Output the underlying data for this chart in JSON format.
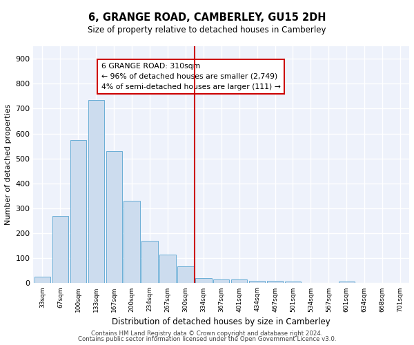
{
  "title": "6, GRANGE ROAD, CAMBERLEY, GU15 2DH",
  "subtitle": "Size of property relative to detached houses in Camberley",
  "xlabel": "Distribution of detached houses by size in Camberley",
  "ylabel": "Number of detached properties",
  "bar_color": "#ccdcee",
  "bar_edge_color": "#6aaed6",
  "background_color": "#eef2fb",
  "grid_color": "#ffffff",
  "categories": [
    "33sqm",
    "67sqm",
    "100sqm",
    "133sqm",
    "167sqm",
    "200sqm",
    "234sqm",
    "267sqm",
    "300sqm",
    "334sqm",
    "367sqm",
    "401sqm",
    "434sqm",
    "467sqm",
    "501sqm",
    "534sqm",
    "567sqm",
    "601sqm",
    "634sqm",
    "668sqm",
    "701sqm"
  ],
  "values": [
    25,
    270,
    575,
    735,
    530,
    330,
    170,
    115,
    68,
    20,
    15,
    14,
    10,
    9,
    8,
    0,
    0,
    7,
    0,
    0,
    0
  ],
  "vline_x": 8.5,
  "vline_color": "#cc0000",
  "annotation_text": "6 GRANGE ROAD: 310sqm\n← 96% of detached houses are smaller (2,749)\n4% of semi-detached houses are larger (111) →",
  "annotation_box_color": "#cc0000",
  "ylim": [
    0,
    950
  ],
  "yticks": [
    0,
    100,
    200,
    300,
    400,
    500,
    600,
    700,
    800,
    900
  ],
  "footer1": "Contains HM Land Registry data © Crown copyright and database right 2024.",
  "footer2": "Contains public sector information licensed under the Open Government Licence v3.0."
}
